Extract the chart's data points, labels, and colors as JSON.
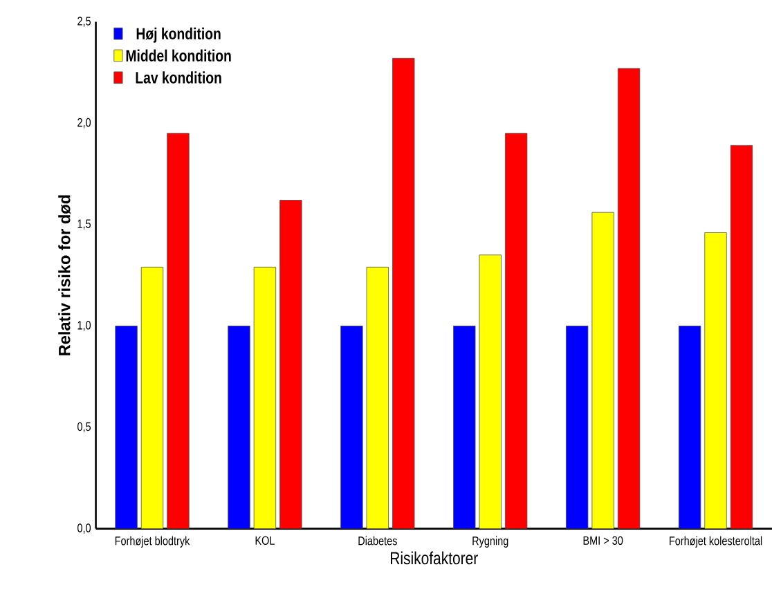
{
  "chart_data": {
    "type": "bar",
    "xlabel": "Risikofaktorer",
    "ylabel": "Relativ risiko for død",
    "categories": [
      "Forhøjet blodtryk",
      "KOL",
      "Diabetes",
      "Rygning",
      "BMI > 30",
      "Forhøjet kolesteroltal"
    ],
    "series": [
      {
        "name": "Høj kondition",
        "color": "#0000ff",
        "values": [
          1.0,
          1.0,
          1.0,
          1.0,
          1.0,
          1.0
        ]
      },
      {
        "name": "Middel kondition",
        "color": "#ffff00",
        "values": [
          1.29,
          1.29,
          1.29,
          1.35,
          1.56,
          1.46
        ]
      },
      {
        "name": "Lav kondition",
        "color": "#ff0000",
        "values": [
          1.95,
          1.62,
          2.32,
          1.95,
          2.27,
          1.89
        ]
      }
    ],
    "ylim": [
      0,
      2.5
    ],
    "yticks": [
      {
        "value": 0,
        "label": "0,0"
      },
      {
        "value": 0.5,
        "label": "0,5"
      },
      {
        "value": 1.0,
        "label": "1,0"
      },
      {
        "value": 1.5,
        "label": "1,5"
      },
      {
        "value": 2.0,
        "label": "2,0"
      },
      {
        "value": 2.5,
        "label": "2,5"
      }
    ],
    "grid": false,
    "legend": "top left"
  }
}
